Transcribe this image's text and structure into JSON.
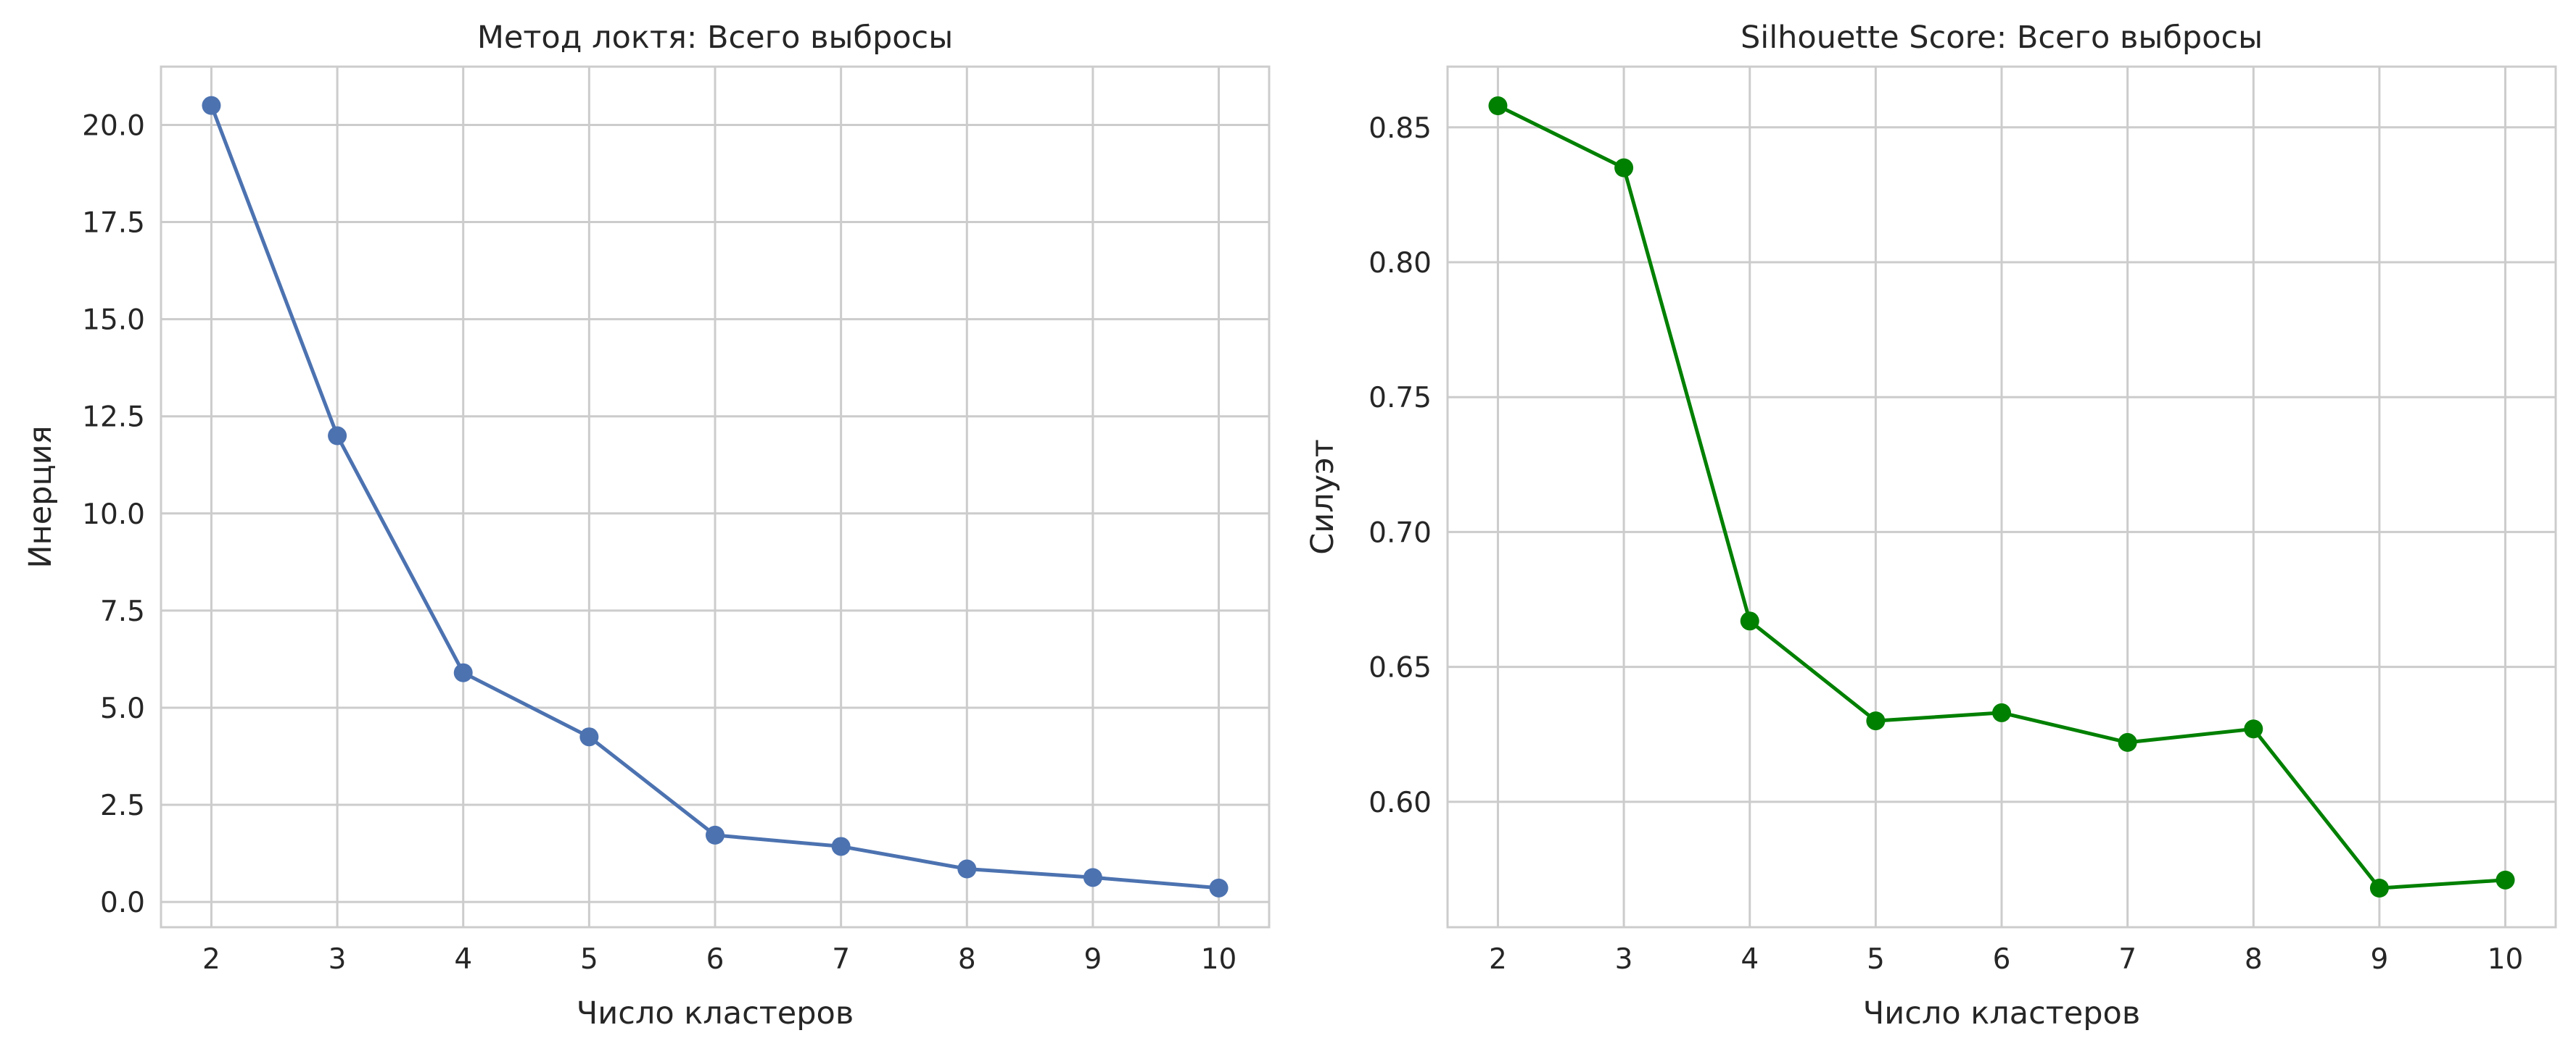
{
  "chart_data": [
    {
      "type": "line",
      "title": "Метод локтя: Всего выбросы",
      "xlabel": "Число кластеров",
      "ylabel": "Инерция",
      "x": [
        2,
        3,
        4,
        5,
        6,
        7,
        8,
        9,
        10
      ],
      "series": [
        {
          "values": [
            20.5,
            12.0,
            5.9,
            4.25,
            1.72,
            1.43,
            0.85,
            0.63,
            0.36
          ],
          "color": "#4c72b0"
        }
      ],
      "xlim": [
        1.6,
        10.4
      ],
      "ylim": [
        -0.65,
        21.5
      ],
      "xticks": [
        2,
        3,
        4,
        5,
        6,
        7,
        8,
        9,
        10
      ],
      "yticks": [
        0.0,
        2.5,
        5.0,
        7.5,
        10.0,
        12.5,
        15.0,
        17.5,
        20.0
      ],
      "ytick_labels": [
        "0.0",
        "2.5",
        "5.0",
        "7.5",
        "10.0",
        "12.5",
        "15.0",
        "17.5",
        "20.0"
      ],
      "grid": true,
      "marker": "circle"
    },
    {
      "type": "line",
      "title": "Silhouette Score: Всего выбросы",
      "xlabel": "Число кластеров",
      "ylabel": "Силуэт",
      "x": [
        2,
        3,
        4,
        5,
        6,
        7,
        8,
        9,
        10
      ],
      "series": [
        {
          "values": [
            0.858,
            0.835,
            0.667,
            0.63,
            0.633,
            0.622,
            0.627,
            0.568,
            0.571
          ],
          "color": "#008000"
        }
      ],
      "xlim": [
        1.6,
        10.4
      ],
      "ylim": [
        0.5535,
        0.8725
      ],
      "xticks": [
        2,
        3,
        4,
        5,
        6,
        7,
        8,
        9,
        10
      ],
      "yticks": [
        0.6,
        0.65,
        0.7,
        0.75,
        0.8,
        0.85
      ],
      "ytick_labels": [
        "0.60",
        "0.65",
        "0.70",
        "0.75",
        "0.80",
        "0.85"
      ],
      "grid": true,
      "marker": "circle"
    }
  ]
}
